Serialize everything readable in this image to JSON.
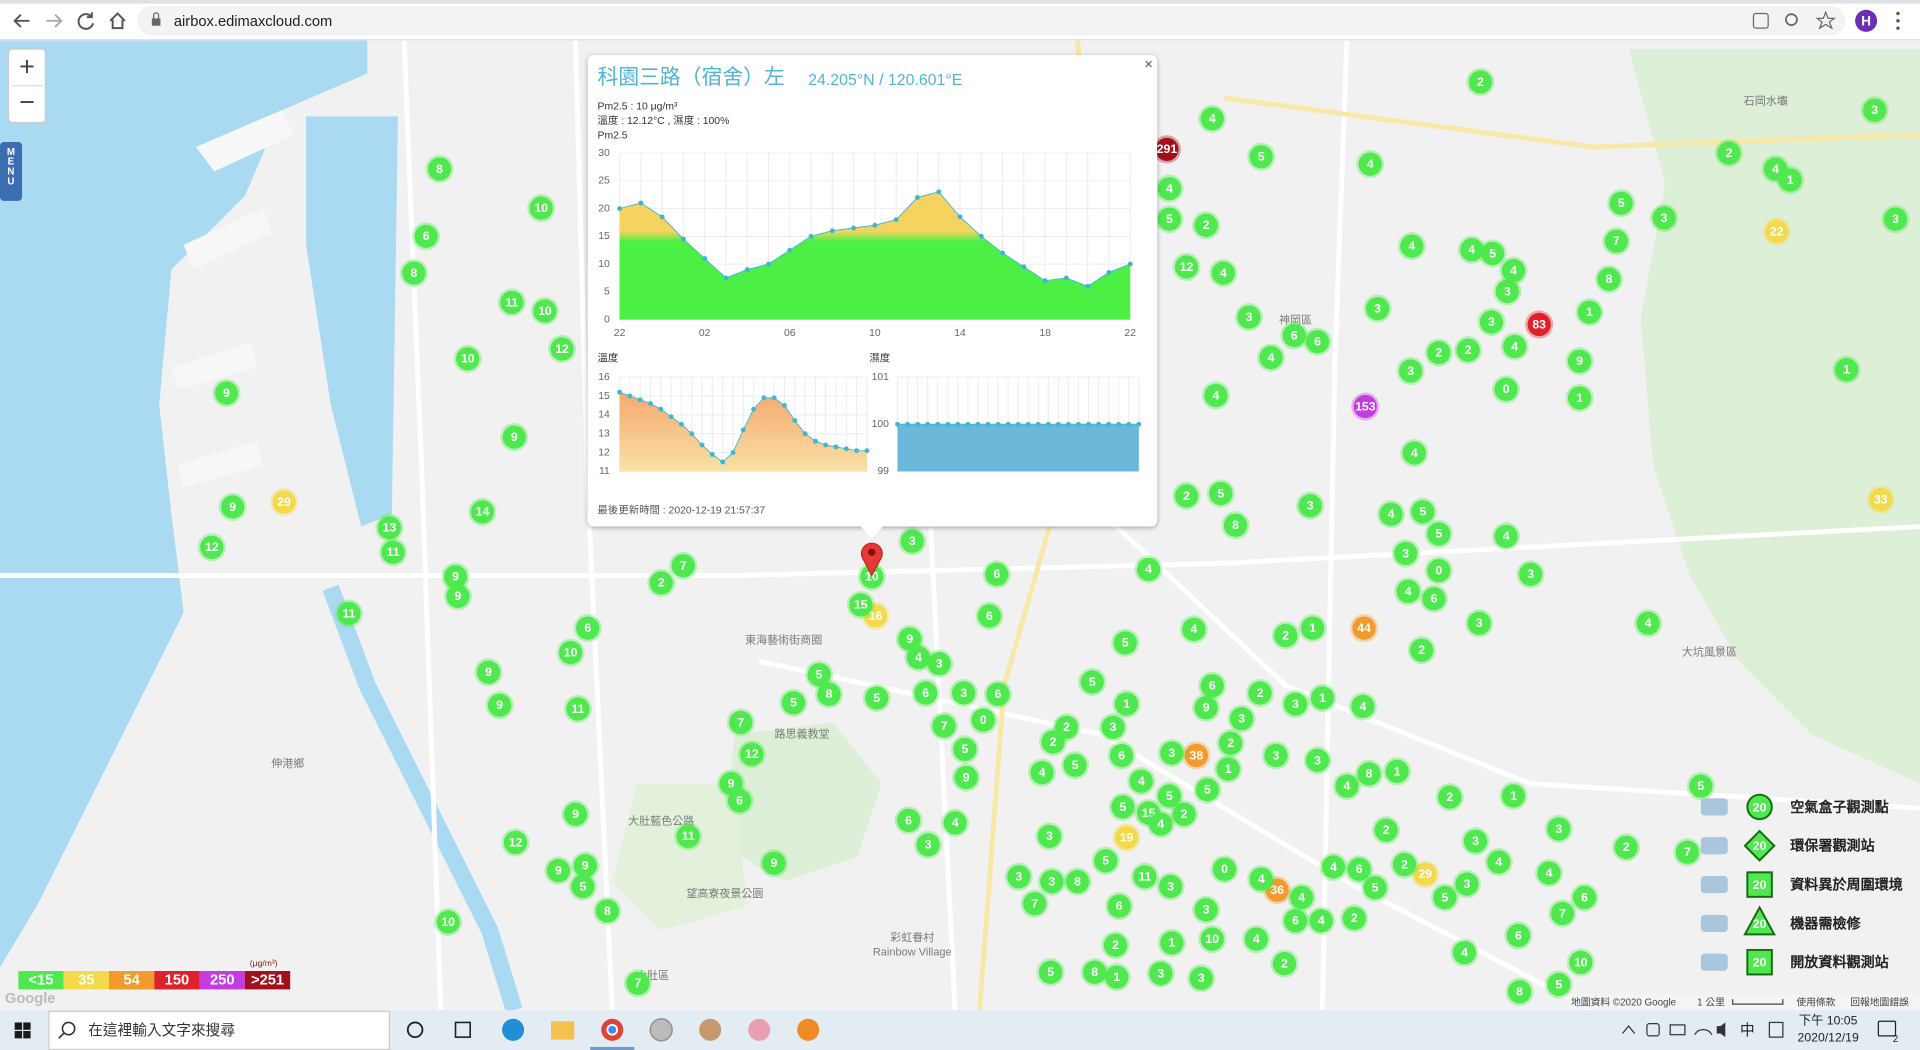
{
  "browser": {
    "url": "airbox.edimaxcloud.com",
    "profile": "H"
  },
  "map": {
    "zoom_in": "+",
    "zoom_out": "−",
    "menu": "MENU",
    "logo": "Google",
    "attribution": [
      "地圖資料 ©2020 Google",
      "1 公里",
      "使用條款",
      "回報地圖錯誤"
    ],
    "places": [
      "神岡區",
      "東海藝術街商圈",
      "路思義教堂",
      "大肚藍色公路",
      "望高寮夜景公園",
      "彩虹眷村",
      "Rainbow Village",
      "大肚區",
      "伸港鄉",
      "大坑風景區",
      "石岡水壩"
    ],
    "markers": [
      8,
      6,
      8,
      10,
      11,
      10,
      10,
      12,
      9,
      9,
      9,
      29,
      12,
      14,
      13,
      11,
      9,
      9,
      11,
      6,
      10,
      9,
      9,
      11,
      7,
      2,
      16,
      15,
      3,
      9,
      4,
      3,
      5,
      8,
      5,
      5,
      7,
      12,
      6,
      9,
      11,
      9,
      9,
      12,
      9,
      9,
      5,
      8,
      10,
      7,
      6,
      3,
      4,
      6,
      6,
      5,
      5,
      4,
      38,
      36,
      19,
      44,
      29,
      1,
      2,
      2,
      6,
      4,
      3,
      3,
      4,
      0,
      3,
      5,
      5,
      4,
      3,
      8,
      5,
      2,
      4,
      4,
      153,
      0,
      1,
      9,
      83,
      4,
      3,
      2,
      2,
      3,
      3,
      4,
      4,
      5,
      4,
      3,
      6,
      6,
      4,
      3,
      4,
      4,
      12,
      2,
      5,
      4,
      291,
      4,
      5,
      4,
      2,
      5,
      3,
      7,
      8,
      1,
      2,
      4,
      1,
      22,
      3,
      3,
      1,
      33,
      4,
      5,
      7,
      2,
      3,
      4,
      6,
      7,
      6,
      10,
      5,
      8,
      4,
      2,
      1,
      4,
      3,
      5,
      3,
      2,
      2,
      2,
      1,
      8,
      4,
      3,
      3,
      1,
      4,
      3,
      2,
      3,
      6,
      9,
      2,
      1,
      5,
      3,
      5,
      4,
      6,
      3,
      1,
      2,
      2,
      4,
      5,
      5,
      15,
      2,
      4,
      5,
      11,
      3,
      3,
      1,
      10,
      0,
      4,
      4,
      4,
      6,
      5,
      6,
      4,
      4,
      2,
      3,
      3,
      1,
      8,
      5,
      7,
      3,
      8,
      3,
      3,
      6,
      2,
      3,
      0,
      6,
      5,
      7,
      9,
      6,
      10
    ]
  },
  "popup": {
    "close": "×",
    "title": "科園三路（宿舍）左",
    "coords": "24.205°N / 120.601°E",
    "lines": [
      "Pm2.5 : 10 μg/m³",
      "溫度 : 12.12°C , 濕度 : 100%"
    ],
    "updated": "最後更新時間 : 2020-12-19 21:57:37",
    "charts": [
      {
        "type": "area",
        "title": "Pm2.5",
        "categories": [
          "22",
          null,
          null,
          null,
          "02",
          null,
          null,
          null,
          "06",
          null,
          null,
          null,
          "10",
          null,
          null,
          null,
          "14",
          null,
          null,
          null,
          "18",
          null,
          null,
          null,
          "22"
        ],
        "values": [
          20,
          21,
          18.5,
          14.5,
          11,
          7.5,
          9,
          10,
          12.5,
          15,
          16,
          16.5,
          17,
          18,
          22,
          23,
          18.5,
          15,
          12,
          9.5,
          7,
          7.5,
          6,
          8.5,
          10
        ],
        "ylim": [
          0,
          30
        ],
        "yticks": [
          0,
          5,
          10,
          15,
          20,
          25,
          30
        ]
      },
      {
        "type": "area",
        "title": "溫度",
        "values": [
          15.2,
          15.0,
          14.8,
          14.6,
          14.3,
          13.9,
          13.5,
          13.0,
          12.4,
          11.9,
          11.5,
          12.0,
          13.2,
          14.3,
          14.9,
          14.9,
          14.5,
          13.7,
          13.0,
          12.6,
          12.4,
          12.3,
          12.2,
          12.1,
          12.1
        ],
        "ylim": [
          11,
          16
        ],
        "yticks": [
          11,
          12,
          13,
          14,
          15,
          16
        ]
      },
      {
        "type": "area",
        "title": "濕度",
        "values": [
          100,
          100,
          100,
          100,
          100,
          100,
          100,
          100,
          100,
          100,
          100,
          100,
          100,
          100,
          100,
          100,
          100,
          100,
          100,
          100,
          100,
          100,
          100,
          100,
          100
        ],
        "ylim": [
          99,
          101
        ],
        "yticks": [
          99,
          100,
          101
        ]
      }
    ]
  },
  "scale": {
    "unit": "(μg/m³)",
    "levels": [
      {
        "value": 15,
        "label": "<15",
        "color": "#4fe84f"
      },
      {
        "value": 35,
        "label": "35",
        "color": "#f4d94a"
      },
      {
        "value": 54,
        "label": "54",
        "color": "#f39a2c"
      },
      {
        "value": 150,
        "label": "150",
        "color": "#e0202a"
      },
      {
        "value": 250,
        "label": "250",
        "color": "#c23ce0"
      },
      {
        "value": 251,
        "label": ">251",
        "color": "#a3101c"
      }
    ]
  },
  "legend": [
    {
      "badge": "20",
      "label": "空氣盒子觀測點"
    },
    {
      "badge": "20",
      "label": "環保署觀測站"
    },
    {
      "badge": "20",
      "label": "資料異於周圍環境"
    },
    {
      "badge": "20",
      "label": "機器需檢修"
    },
    {
      "badge": "20",
      "label": "開放資料觀測站"
    }
  ],
  "taskbar": {
    "search": "在這裡輸入文字來搜尋",
    "ime": "中",
    "time": "下午 10:05",
    "date": "2020/12/19",
    "notifications": "2"
  }
}
